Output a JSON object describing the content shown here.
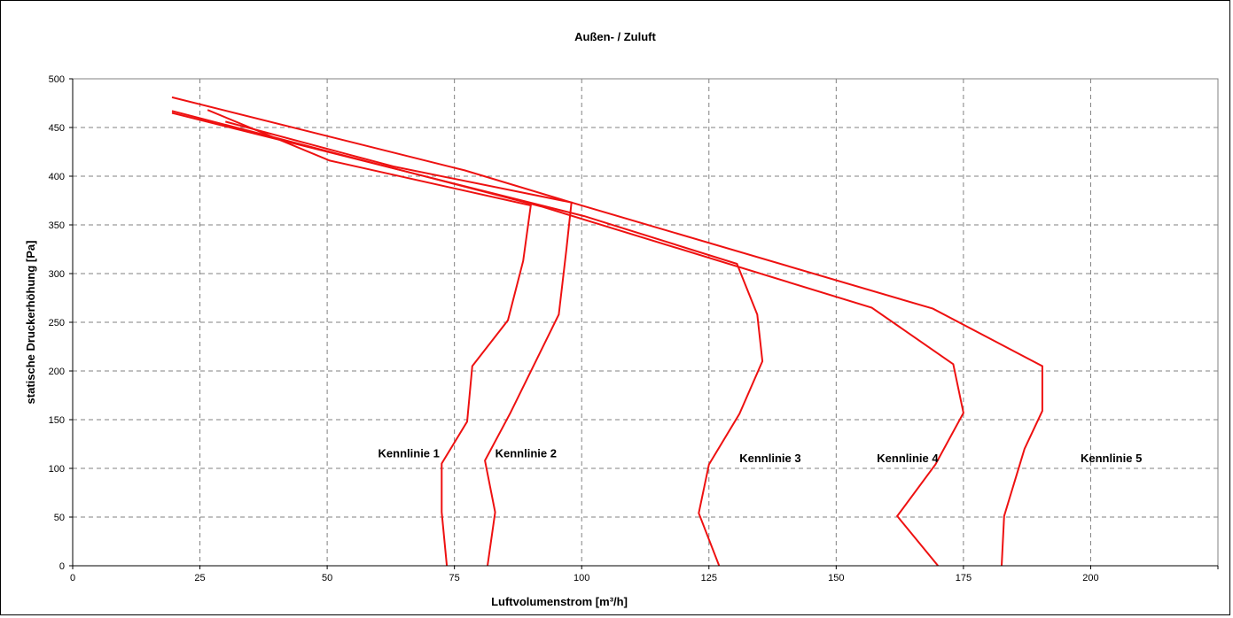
{
  "chart_data": {
    "type": "line",
    "title": "Außen- / Zuluft",
    "xlabel": "Luftvolumenstrom [m³/h]",
    "ylabel": "statische Druckerhöhung [Pa]",
    "xlim": [
      0,
      225
    ],
    "ylim": [
      0,
      500
    ],
    "x_ticks": [
      0,
      25,
      50,
      75,
      100,
      125,
      150,
      175,
      200
    ],
    "y_ticks": [
      0,
      50,
      100,
      150,
      200,
      250,
      300,
      350,
      400,
      450,
      500
    ],
    "x_tick_labels": [
      "0",
      "25",
      "50",
      "75",
      "100",
      "125",
      "150",
      "175",
      "200"
    ],
    "y_tick_labels": [
      "0",
      "50",
      "100",
      "150",
      "200",
      "250",
      "300",
      "350",
      "400",
      "450",
      "500"
    ],
    "grid": true,
    "legend": "none",
    "line_color": "#ee1111",
    "series": [
      {
        "name": "Kennlinie 1",
        "label_pos": {
          "x": 60,
          "y": 115
        },
        "points": [
          [
            73.5,
            0
          ],
          [
            72.5,
            55
          ],
          [
            72.5,
            105
          ],
          [
            77.5,
            148
          ],
          [
            78.5,
            205
          ],
          [
            85.5,
            252
          ],
          [
            88.5,
            313
          ],
          [
            90.0,
            370
          ],
          [
            50.5,
            416
          ],
          [
            26.5,
            468
          ]
        ]
      },
      {
        "name": "Kennlinie 2",
        "label_pos": {
          "x": 83,
          "y": 115
        },
        "points": [
          [
            81.5,
            0
          ],
          [
            83.0,
            55
          ],
          [
            81.0,
            108
          ],
          [
            86.0,
            157
          ],
          [
            95.5,
            258
          ],
          [
            97.0,
            325
          ],
          [
            98.0,
            373
          ],
          [
            63.0,
            410
          ],
          [
            30.0,
            456
          ]
        ]
      },
      {
        "name": "Kennlinie 3",
        "label_pos": {
          "x": 131,
          "y": 110
        },
        "points": [
          [
            127.0,
            0
          ],
          [
            123.0,
            54
          ],
          [
            125.0,
            104
          ],
          [
            131.0,
            156
          ],
          [
            135.5,
            210
          ],
          [
            134.5,
            258
          ],
          [
            130.5,
            310
          ],
          [
            100.5,
            359
          ],
          [
            19.5,
            465
          ]
        ]
      },
      {
        "name": "Kennlinie 4",
        "label_pos": {
          "x": 158,
          "y": 110
        },
        "points": [
          [
            170.0,
            0
          ],
          [
            162.0,
            51
          ],
          [
            169.5,
            104
          ],
          [
            175.0,
            157
          ],
          [
            173.0,
            207
          ],
          [
            157.0,
            265
          ],
          [
            92.0,
            369
          ],
          [
            19.5,
            467
          ]
        ]
      },
      {
        "name": "Kennlinie 5",
        "label_pos": {
          "x": 198,
          "y": 110
        },
        "points": [
          [
            182.5,
            0
          ],
          [
            183.0,
            51
          ],
          [
            187.0,
            120
          ],
          [
            190.5,
            159
          ],
          [
            190.5,
            205
          ],
          [
            169.0,
            264
          ],
          [
            98.0,
            373
          ],
          [
            77.0,
            406
          ],
          [
            19.5,
            481
          ]
        ]
      }
    ]
  }
}
